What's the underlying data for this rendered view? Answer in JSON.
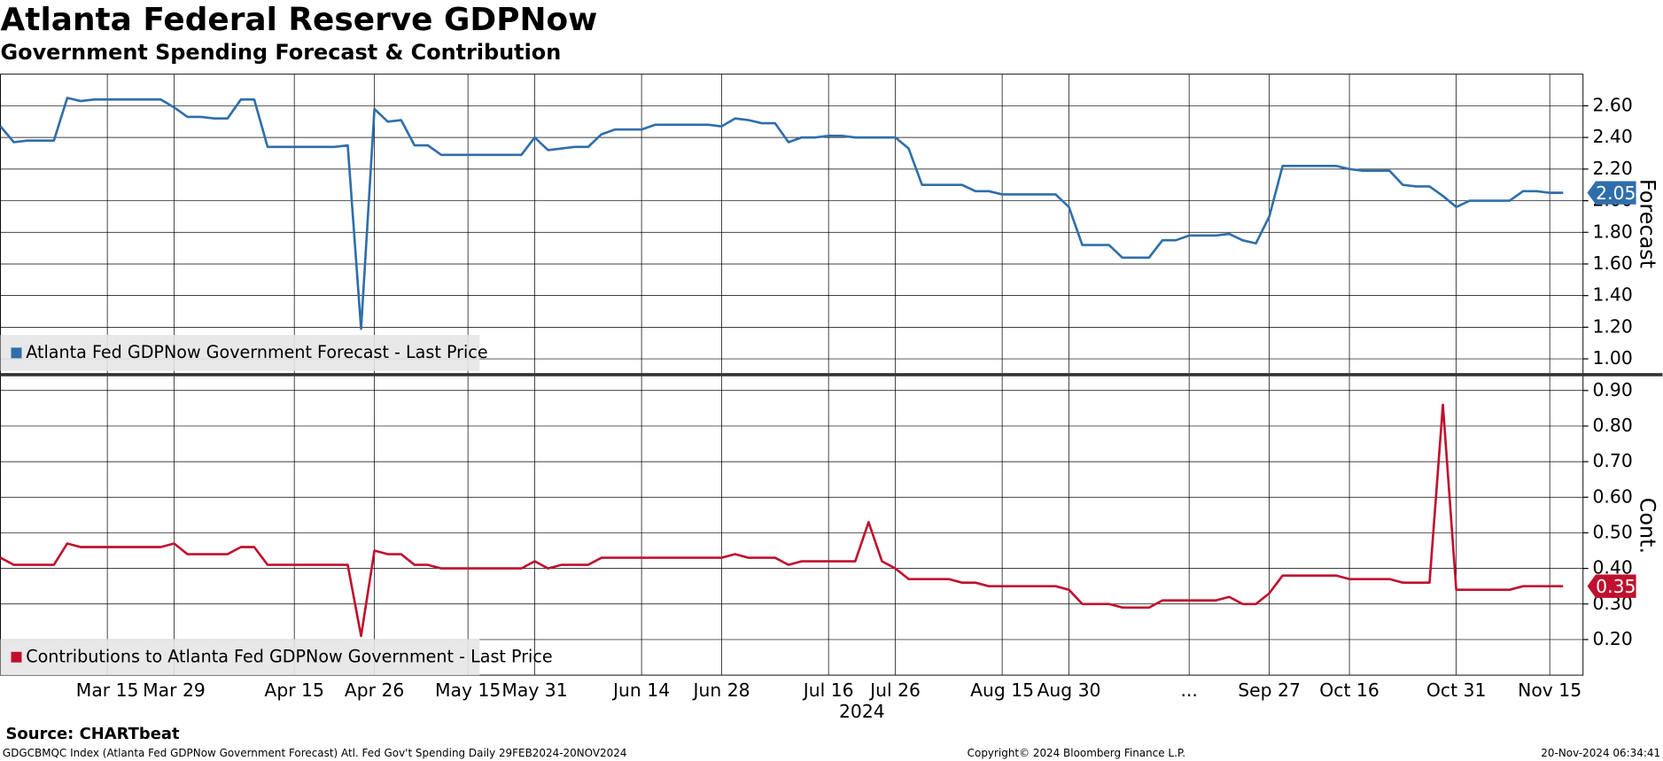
{
  "title": "Atlanta Federal Reserve GDPNow",
  "subtitle": "Government Spending Forecast & Contribution",
  "source": "Source: CHARTbeat",
  "footer_left": "GDGCBMQC Index (Atlanta Fed GDPNow Government Forecast) Atl. Fed Gov't Spending  Daily 29FEB2024-20NOV2024",
  "footer_center": "Copyright© 2024 Bloomberg Finance L.P.",
  "footer_right": "20-Nov-2024 06:34:41",
  "chart_data": [
    {
      "type": "line",
      "ylabel": "Forecast",
      "grid": true,
      "legend": "lower left",
      "ylim": [
        0.91,
        2.8
      ],
      "yticks": [
        {
          "value": 1.0,
          "label": "1.00"
        },
        {
          "value": 1.2,
          "label": "1.20"
        },
        {
          "value": 1.4,
          "label": "1.40"
        },
        {
          "value": 1.6,
          "label": "1.60"
        },
        {
          "value": 1.8,
          "label": "1.80"
        },
        {
          "value": 2.0,
          "label": "2.00"
        },
        {
          "value": 2.2,
          "label": "2.20"
        },
        {
          "value": 2.4,
          "label": "2.40"
        },
        {
          "value": 2.6,
          "label": "2.60"
        }
      ],
      "series": [
        {
          "name": "Atlanta Fed GDPNow Government Forecast - Last Price",
          "color": "#2f6eaa",
          "values": [
            2.47,
            2.37,
            2.38,
            2.38,
            2.38,
            2.65,
            2.63,
            2.64,
            2.64,
            2.64,
            2.64,
            2.64,
            2.64,
            2.59,
            2.53,
            2.53,
            2.52,
            2.52,
            2.64,
            2.64,
            2.34,
            2.34,
            2.34,
            2.34,
            2.34,
            2.34,
            2.35,
            1.19,
            2.58,
            2.5,
            2.51,
            2.35,
            2.35,
            2.29,
            2.29,
            2.29,
            2.29,
            2.29,
            2.29,
            2.29,
            2.4,
            2.32,
            2.33,
            2.34,
            2.34,
            2.42,
            2.45,
            2.45,
            2.45,
            2.48,
            2.48,
            2.48,
            2.48,
            2.48,
            2.47,
            2.52,
            2.51,
            2.49,
            2.49,
            2.37,
            2.4,
            2.4,
            2.41,
            2.41,
            2.4,
            2.4,
            2.4,
            2.4,
            2.33,
            2.1,
            2.1,
            2.1,
            2.1,
            2.06,
            2.06,
            2.04,
            2.04,
            2.04,
            2.04,
            2.04,
            1.96,
            1.72,
            1.72,
            1.72,
            1.64,
            1.64,
            1.64,
            1.75,
            1.75,
            1.78,
            1.78,
            1.78,
            1.79,
            1.75,
            1.73,
            1.9,
            2.22,
            2.22,
            2.22,
            2.22,
            2.22,
            2.2,
            2.19,
            2.19,
            2.19,
            2.1,
            2.09,
            2.09,
            2.03,
            1.96,
            2.0,
            2.0,
            2.0,
            2.0,
            2.06,
            2.06,
            2.05,
            2.05
          ]
        }
      ]
    },
    {
      "type": "line",
      "ylabel": "Cont.",
      "grid": true,
      "legend": "lower left",
      "xlabel": "2024",
      "categories": [
        null,
        null,
        null,
        null,
        null,
        null,
        null,
        null,
        "Mar 15",
        null,
        null,
        null,
        null,
        "Mar 29",
        null,
        null,
        null,
        null,
        null,
        null,
        null,
        null,
        "Apr 15",
        null,
        null,
        null,
        null,
        null,
        "Apr 26",
        null,
        null,
        null,
        null,
        null,
        null,
        "May 15",
        null,
        null,
        null,
        null,
        "May 31",
        null,
        null,
        null,
        null,
        null,
        null,
        null,
        "Jun 14",
        null,
        null,
        null,
        null,
        null,
        "Jun 28",
        null,
        null,
        null,
        null,
        null,
        null,
        null,
        "Jul 16",
        null,
        null,
        null,
        null,
        "Jul 26",
        null,
        null,
        null,
        null,
        null,
        null,
        null,
        "Aug 15",
        null,
        null,
        null,
        null,
        "Aug 30",
        null,
        null,
        null,
        null,
        null,
        null,
        null,
        null,
        "...",
        null,
        null,
        null,
        null,
        null,
        "Sep 27",
        null,
        null,
        null,
        null,
        null,
        "Oct 16",
        null,
        null,
        null,
        null,
        null,
        null,
        null,
        "Oct 31",
        null,
        null,
        null,
        null,
        null,
        null,
        "Nov 15",
        null
      ],
      "ylim": [
        0.1,
        0.94
      ],
      "yticks": [
        {
          "value": 0.2,
          "label": "0.20"
        },
        {
          "value": 0.3,
          "label": "0.30"
        },
        {
          "value": 0.4,
          "label": "0.40"
        },
        {
          "value": 0.5,
          "label": "0.50"
        },
        {
          "value": 0.6,
          "label": "0.60"
        },
        {
          "value": 0.7,
          "label": "0.70"
        },
        {
          "value": 0.8,
          "label": "0.80"
        },
        {
          "value": 0.9,
          "label": "0.90"
        }
      ],
      "series": [
        {
          "name": "Contributions to Atlanta Fed GDPNow Government - Last Price",
          "color": "#c0102e",
          "values": [
            0.43,
            0.41,
            0.41,
            0.41,
            0.41,
            0.47,
            0.46,
            0.46,
            0.46,
            0.46,
            0.46,
            0.46,
            0.46,
            0.47,
            0.44,
            0.44,
            0.44,
            0.44,
            0.46,
            0.46,
            0.41,
            0.41,
            0.41,
            0.41,
            0.41,
            0.41,
            0.41,
            0.21,
            0.45,
            0.44,
            0.44,
            0.41,
            0.41,
            0.4,
            0.4,
            0.4,
            0.4,
            0.4,
            0.4,
            0.4,
            0.42,
            0.4,
            0.41,
            0.41,
            0.41,
            0.43,
            0.43,
            0.43,
            0.43,
            0.43,
            0.43,
            0.43,
            0.43,
            0.43,
            0.43,
            0.44,
            0.43,
            0.43,
            0.43,
            0.41,
            0.42,
            0.42,
            0.42,
            0.42,
            0.42,
            0.53,
            0.42,
            0.4,
            0.37,
            0.37,
            0.37,
            0.37,
            0.36,
            0.36,
            0.35,
            0.35,
            0.35,
            0.35,
            0.35,
            0.35,
            0.34,
            0.3,
            0.3,
            0.3,
            0.29,
            0.29,
            0.29,
            0.31,
            0.31,
            0.31,
            0.31,
            0.31,
            0.32,
            0.3,
            0.3,
            0.33,
            0.38,
            0.38,
            0.38,
            0.38,
            0.38,
            0.37,
            0.37,
            0.37,
            0.37,
            0.36,
            0.36,
            0.36,
            0.86,
            0.34,
            0.34,
            0.34,
            0.34,
            0.34,
            0.35,
            0.35,
            0.35,
            0.35
          ]
        }
      ]
    }
  ]
}
